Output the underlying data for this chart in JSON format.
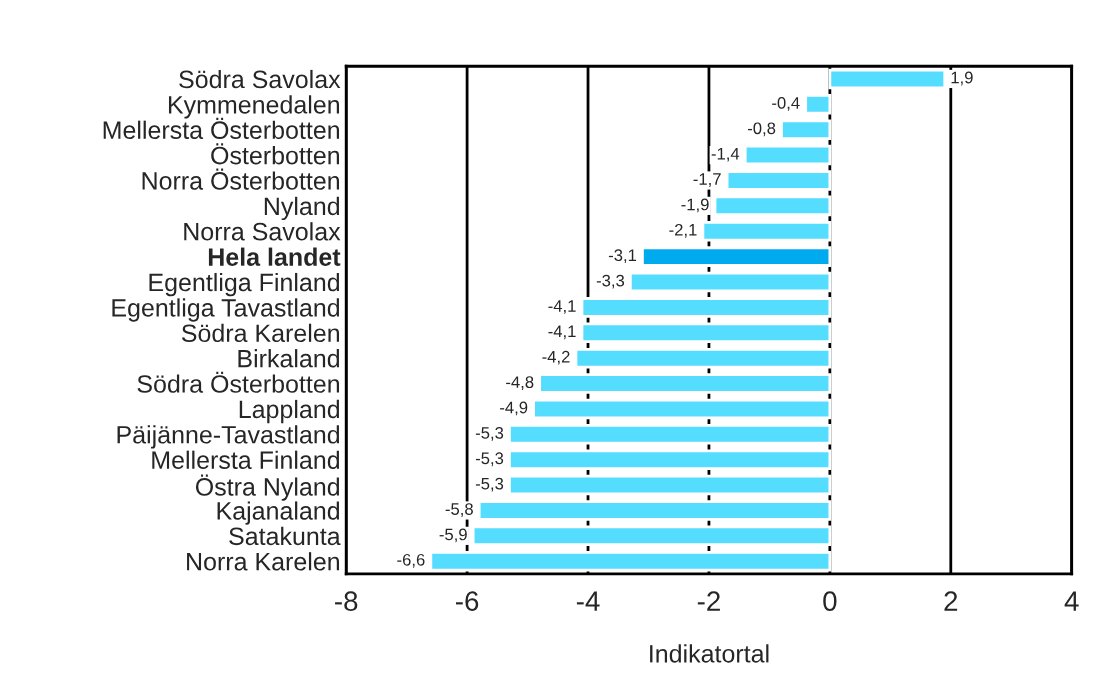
{
  "chart_data": {
    "type": "bar",
    "orientation": "horizontal",
    "xlabel": "Indikatortal",
    "categories": [
      "Södra Savolax",
      "Kymmenedalen",
      "Mellersta Österbotten",
      "Österbotten",
      "Norra Österbotten",
      "Nyland",
      "Norra Savolax",
      "Hela landet",
      "Egentliga Finland",
      "Egentliga Tavastland",
      "Södra Karelen",
      "Birkaland",
      "Södra Österbotten",
      "Lappland",
      "Päijänne-Tavastland",
      "Mellersta Finland",
      "Östra Nyland",
      "Kajanaland",
      "Satakunta",
      "Norra Karelen"
    ],
    "values": [
      1.9,
      -0.4,
      -0.8,
      -1.4,
      -1.7,
      -1.9,
      -2.1,
      -3.1,
      -3.3,
      -4.1,
      -4.1,
      -4.2,
      -4.8,
      -4.9,
      -5.3,
      -5.3,
      -5.3,
      -5.8,
      -5.9,
      -6.6
    ],
    "value_labels": [
      "1,9",
      "-0,4",
      "-0,8",
      "-1,4",
      "-1,7",
      "-1,9",
      "-2,1",
      "-3,1",
      "-3,3",
      "-4,1",
      "-4,1",
      "-4,2",
      "-4,8",
      "-4,9",
      "-5,3",
      "-5,3",
      "-5,3",
      "-5,8",
      "-5,9",
      "-6,6"
    ],
    "colors": [
      "#55ddff",
      "#55ddff",
      "#55ddff",
      "#55ddff",
      "#55ddff",
      "#55ddff",
      "#55ddff",
      "#00aaee",
      "#55ddff",
      "#55ddff",
      "#55ddff",
      "#55ddff",
      "#55ddff",
      "#55ddff",
      "#55ddff",
      "#55ddff",
      "#55ddff",
      "#55ddff",
      "#55ddff",
      "#55ddff"
    ],
    "xlim": [
      -8,
      4
    ],
    "xticks": [
      -8,
      -6,
      -4,
      -2,
      0,
      2,
      4
    ],
    "grid": "x",
    "legend": false
  }
}
